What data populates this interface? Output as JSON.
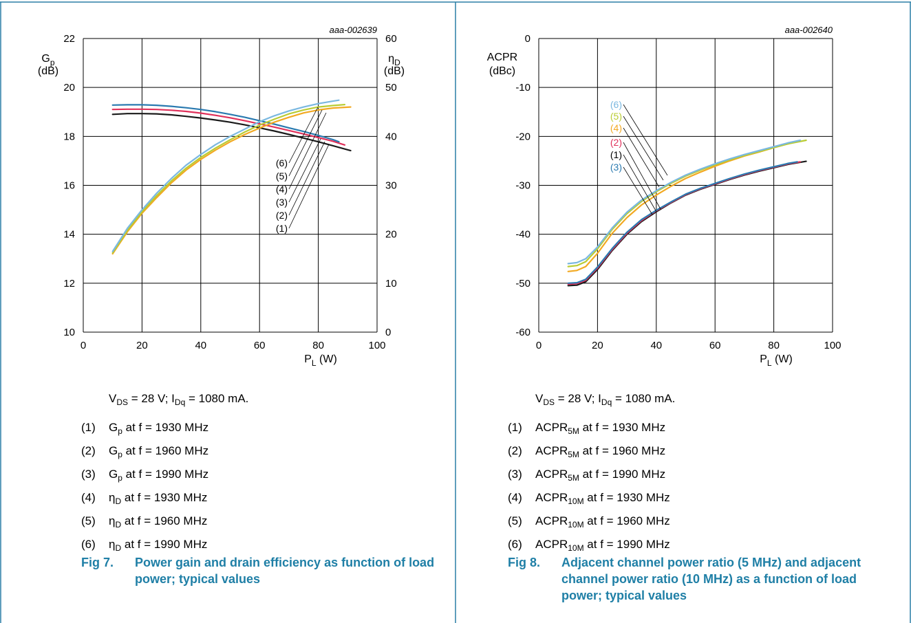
{
  "colors": {
    "frame": "#2a7fa5",
    "caption": "#1f7fa6",
    "curve1": "#1a1a1a",
    "curve2": "#e0305a",
    "curve3": "#2a7ab0",
    "curve4": "#f2a922",
    "curve5": "#b9cc33",
    "curve6": "#7ab8e0"
  },
  "fig7": {
    "ref": "aaa-002639",
    "conditions": {
      "v_sym": "V",
      "v_sub": "DS",
      "v_rest": " = 28 V; I",
      "i_sub": "Dq",
      "i_rest": " = 1080 mA."
    },
    "legend": [
      {
        "num": "(1)",
        "sym": "G",
        "sub": "p",
        "text": " at f = 1930 MHz"
      },
      {
        "num": "(2)",
        "sym": "G",
        "sub": "p",
        "text": " at f = 1960 MHz"
      },
      {
        "num": "(3)",
        "sym": "G",
        "sub": "p",
        "text": " at f = 1990 MHz"
      },
      {
        "num": "(4)",
        "sym": "η",
        "sub": "D",
        "text": " at f = 1930 MHz"
      },
      {
        "num": "(5)",
        "sym": "η",
        "sub": "D",
        "text": " at f = 1960 MHz"
      },
      {
        "num": "(6)",
        "sym": "η",
        "sub": "D",
        "text": " at f = 1990 MHz"
      }
    ],
    "caption_num": "Fig 7.",
    "caption_text": "Power gain and drain efficiency as function of load power; typical values"
  },
  "fig8": {
    "ref": "aaa-002640",
    "conditions": {
      "v_sym": "V",
      "v_sub": "DS",
      "v_rest": " = 28 V; I",
      "i_sub": "Dq",
      "i_rest": " = 1080 mA."
    },
    "legend": [
      {
        "num": "(1)",
        "sym": "ACPR",
        "sub": "5M",
        "text": " at f = 1930 MHz"
      },
      {
        "num": "(2)",
        "sym": "ACPR",
        "sub": "5M",
        "text": " at f = 1960 MHz"
      },
      {
        "num": "(3)",
        "sym": "ACPR",
        "sub": "5M",
        "text": " at f = 1990 MHz"
      },
      {
        "num": "(4)",
        "sym": "ACPR",
        "sub": "10M",
        "text": " at f = 1930 MHz"
      },
      {
        "num": "(5)",
        "sym": "ACPR",
        "sub": "10M",
        "text": " at f = 1960 MHz"
      },
      {
        "num": "(6)",
        "sym": "ACPR",
        "sub": "10M",
        "text": " at f = 1990 MHz"
      }
    ],
    "caption_num": "Fig 8.",
    "caption_text": "Adjacent channel power ratio (5 MHz) and adjacent channel power ratio (10 MHz) as a function of load power; typical values"
  },
  "chart_data": [
    {
      "type": "line",
      "ref": "aaa-002639",
      "xlabel": {
        "sym": "P",
        "sub": "L",
        "unit": " (W)"
      },
      "ylabel_left": {
        "sym": "G",
        "sub": "p",
        "unit": "(dB)"
      },
      "ylabel_right": {
        "sym": "η",
        "sub": "D",
        "unit": "(dB)"
      },
      "xlim": [
        0,
        100
      ],
      "ylim_left": [
        10,
        22
      ],
      "ylim_right": [
        0,
        60
      ],
      "x_ticks": [
        0,
        20,
        40,
        60,
        80,
        100
      ],
      "y_ticks_left": [
        10,
        12,
        14,
        16,
        18,
        20,
        22
      ],
      "y_ticks_right": [
        0,
        10,
        20,
        30,
        40,
        50,
        60
      ],
      "grid": true,
      "callout_labels": [
        "(6)",
        "(5)",
        "(4)",
        "(3)",
        "(2)",
        "(1)"
      ],
      "series": [
        {
          "label": "(1)",
          "axis": "left",
          "color": "#1a1a1a",
          "x": [
            10,
            15,
            20,
            25,
            30,
            35,
            40,
            45,
            50,
            55,
            60,
            65,
            70,
            75,
            80,
            85,
            91
          ],
          "y": [
            18.9,
            18.93,
            18.93,
            18.92,
            18.88,
            18.82,
            18.75,
            18.67,
            18.58,
            18.47,
            18.35,
            18.22,
            18.08,
            17.93,
            17.78,
            17.62,
            17.42
          ]
        },
        {
          "label": "(2)",
          "axis": "left",
          "color": "#e0305a",
          "x": [
            10,
            15,
            20,
            25,
            30,
            35,
            40,
            45,
            50,
            55,
            60,
            65,
            70,
            75,
            80,
            85,
            89
          ],
          "y": [
            19.1,
            19.11,
            19.11,
            19.1,
            19.07,
            19.02,
            18.95,
            18.86,
            18.76,
            18.64,
            18.51,
            18.38,
            18.24,
            18.1,
            17.95,
            17.8,
            17.65
          ]
        },
        {
          "label": "(3)",
          "axis": "left",
          "color": "#2a7ab0",
          "x": [
            10,
            15,
            20,
            25,
            30,
            35,
            40,
            45,
            50,
            55,
            60,
            65,
            70,
            75,
            80,
            85,
            87
          ],
          "y": [
            19.28,
            19.29,
            19.29,
            19.27,
            19.23,
            19.17,
            19.1,
            19.01,
            18.9,
            18.78,
            18.64,
            18.5,
            18.35,
            18.2,
            18.04,
            17.87,
            17.78
          ]
        },
        {
          "label": "(4)",
          "axis": "right",
          "color": "#f2a922",
          "x": [
            10,
            15,
            20,
            25,
            30,
            35,
            40,
            45,
            50,
            55,
            60,
            65,
            70,
            75,
            80,
            85,
            91
          ],
          "y": [
            16,
            20.5,
            24.3,
            27.5,
            30.5,
            33.1,
            35.3,
            37.2,
            38.9,
            40.4,
            41.7,
            42.9,
            43.9,
            44.8,
            45.4,
            45.8,
            46
          ]
        },
        {
          "label": "(5)",
          "axis": "right",
          "color": "#b9cc33",
          "x": [
            10,
            15,
            20,
            25,
            30,
            35,
            40,
            45,
            50,
            55,
            60,
            65,
            70,
            75,
            80,
            85,
            89
          ],
          "y": [
            16.2,
            20.8,
            24.6,
            27.9,
            30.9,
            33.5,
            35.7,
            37.6,
            39.3,
            40.9,
            42.3,
            43.5,
            44.6,
            45.4,
            46,
            46.3,
            46.5
          ]
        },
        {
          "label": "(6)",
          "axis": "right",
          "color": "#7ab8e0",
          "x": [
            10,
            15,
            20,
            25,
            30,
            35,
            40,
            45,
            50,
            55,
            60,
            65,
            70,
            75,
            80,
            85,
            87
          ],
          "y": [
            16.5,
            21.2,
            25,
            28.4,
            31.4,
            34.1,
            36.3,
            38.3,
            40,
            41.5,
            43,
            44.2,
            45.2,
            46,
            46.7,
            47.2,
            47.4
          ]
        }
      ]
    },
    {
      "type": "line",
      "ref": "aaa-002640",
      "xlabel": {
        "sym": "P",
        "sub": "L",
        "unit": " (W)"
      },
      "ylabel_left": {
        "sym": "ACPR",
        "sub": "",
        "unit": "(dBc)"
      },
      "xlim": [
        0,
        100
      ],
      "ylim_left": [
        -60,
        0
      ],
      "x_ticks": [
        0,
        20,
        40,
        60,
        80,
        100
      ],
      "y_ticks_left": [
        -60,
        -50,
        -40,
        -30,
        -20,
        -10,
        0
      ],
      "grid": true,
      "callout_labels": [
        "(6)",
        "(5)",
        "(4)",
        "(2)",
        "(1)",
        "(3)"
      ],
      "series": [
        {
          "label": "(1)",
          "axis": "left",
          "color": "#1a1a1a",
          "x": [
            10,
            13,
            16,
            20,
            25,
            30,
            35,
            40,
            45,
            50,
            55,
            60,
            65,
            70,
            75,
            80,
            85,
            91
          ],
          "y": [
            -50.5,
            -50.4,
            -49.7,
            -47.2,
            -43.3,
            -40,
            -37.4,
            -35.4,
            -33.6,
            -32,
            -30.8,
            -29.8,
            -28.8,
            -27.9,
            -27.1,
            -26.4,
            -25.7,
            -25.1
          ]
        },
        {
          "label": "(2)",
          "axis": "left",
          "color": "#e0305a",
          "x": [
            10,
            13,
            16,
            20,
            25,
            30,
            35,
            40,
            45,
            50,
            55,
            60,
            65,
            70,
            75,
            80,
            85,
            89
          ],
          "y": [
            -50.2,
            -50.1,
            -49.4,
            -46.9,
            -43.1,
            -39.8,
            -37.2,
            -35.2,
            -33.5,
            -31.9,
            -30.7,
            -29.7,
            -28.7,
            -27.8,
            -27,
            -26.3,
            -25.6,
            -25.2
          ]
        },
        {
          "label": "(3)",
          "axis": "left",
          "color": "#2a7ab0",
          "x": [
            10,
            13,
            16,
            20,
            25,
            30,
            35,
            40,
            45,
            50,
            55,
            60,
            65,
            70,
            75,
            80,
            85,
            88
          ],
          "y": [
            -50,
            -49.9,
            -49.2,
            -46.7,
            -42.9,
            -39.6,
            -37,
            -35.1,
            -33.4,
            -31.8,
            -30.6,
            -29.6,
            -28.6,
            -27.7,
            -26.9,
            -26.2,
            -25.5,
            -25.2
          ]
        },
        {
          "label": "(4)",
          "axis": "left",
          "color": "#f2a922",
          "x": [
            10,
            13,
            16,
            20,
            25,
            30,
            35,
            40,
            45,
            50,
            55,
            60,
            65,
            70,
            75,
            80,
            85,
            88
          ],
          "y": [
            -47.6,
            -47.4,
            -46.6,
            -43.9,
            -39.8,
            -36.6,
            -34,
            -32,
            -30.2,
            -28.6,
            -27.3,
            -26.1,
            -25,
            -24,
            -23.2,
            -22.3,
            -21.5,
            -21
          ]
        },
        {
          "label": "(5)",
          "axis": "left",
          "color": "#b9cc33",
          "x": [
            10,
            13,
            16,
            20,
            25,
            30,
            35,
            40,
            45,
            50,
            55,
            60,
            65,
            70,
            75,
            80,
            85,
            91
          ],
          "y": [
            -46.6,
            -46.4,
            -45.6,
            -43,
            -39,
            -35.8,
            -33.3,
            -31.3,
            -29.6,
            -28.1,
            -26.9,
            -25.8,
            -24.8,
            -23.9,
            -23.1,
            -22.3,
            -21.5,
            -20.8
          ]
        },
        {
          "label": "(6)",
          "axis": "left",
          "color": "#7ab8e0",
          "x": [
            10,
            13,
            16,
            20,
            25,
            30,
            35,
            40,
            45,
            50,
            55,
            60,
            65,
            70,
            75,
            80,
            85,
            89
          ],
          "y": [
            -46,
            -45.8,
            -45,
            -42.6,
            -38.7,
            -35.5,
            -33,
            -31.1,
            -29.4,
            -27.9,
            -26.7,
            -25.6,
            -24.6,
            -23.7,
            -22.9,
            -22.1,
            -21.3,
            -20.8
          ]
        }
      ]
    }
  ]
}
